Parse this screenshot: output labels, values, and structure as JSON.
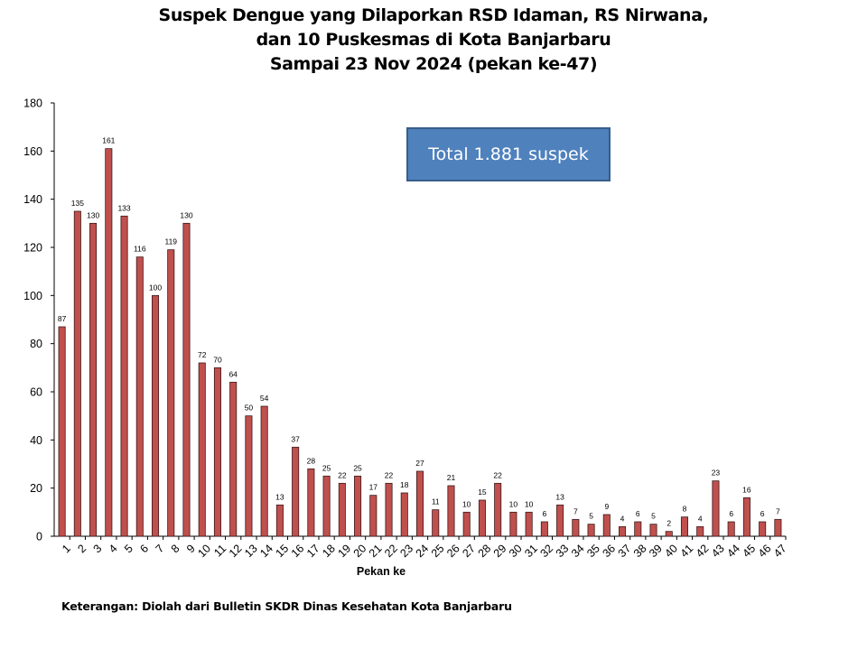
{
  "title_lines": [
    "Suspek Dengue yang Dilaporkan RSD Idaman, RS Nirwana,",
    "dan 10 Puskesmas di Kota Banjarbaru",
    "Sampai 23 Nov 2024 (pekan ke-47)"
  ],
  "annotation": "Total 1.881 suspek",
  "footnote": "Keterangan: Diolah dari Bulletin SKDR Dinas Kesehatan Kota Banjarbaru",
  "colors": {
    "bar_fill": "#c0504d",
    "bar_stroke": "#3a1a1a",
    "box_fill": "#4f81bd"
  },
  "chart_data": {
    "type": "bar",
    "title": "Suspek Dengue yang Dilaporkan RSD Idaman, RS Nirwana, dan 10 Puskesmas di Kota Banjarbaru Sampai 23 Nov 2024 (pekan ke-47)",
    "xlabel": "Pekan ke",
    "ylabel": "",
    "ylim": [
      0,
      180
    ],
    "yticks": [
      0,
      20,
      40,
      60,
      80,
      100,
      120,
      140,
      160,
      180
    ],
    "categories": [
      "1",
      "2",
      "3",
      "4",
      "5",
      "6",
      "7",
      "8",
      "9",
      "10",
      "11",
      "12",
      "13",
      "14",
      "15",
      "16",
      "17",
      "18",
      "19",
      "20",
      "21",
      "22",
      "23",
      "24",
      "25",
      "26",
      "27",
      "28",
      "29",
      "30",
      "31",
      "32",
      "33",
      "34",
      "35",
      "36",
      "37",
      "38",
      "39",
      "40",
      "41",
      "42",
      "43",
      "44",
      "45",
      "46",
      "47"
    ],
    "values": [
      87,
      135,
      130,
      161,
      133,
      116,
      100,
      119,
      130,
      72,
      70,
      64,
      50,
      54,
      13,
      37,
      28,
      25,
      22,
      25,
      17,
      22,
      18,
      27,
      11,
      21,
      10,
      15,
      22,
      10,
      10,
      6,
      13,
      7,
      5,
      9,
      4,
      6,
      5,
      2,
      8,
      4,
      23,
      6,
      16,
      6,
      7
    ],
    "grid": false,
    "legend": "none",
    "data_labels": true
  }
}
